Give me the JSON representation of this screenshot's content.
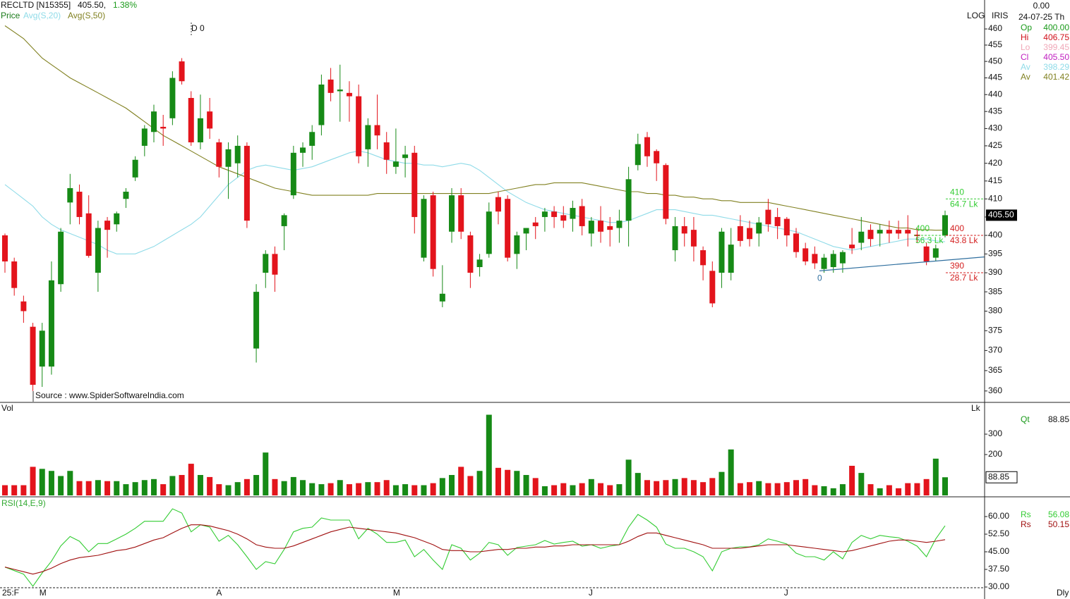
{
  "header": {
    "symbol": "RECLTD [N15355]",
    "last": "405.50,",
    "change": "1.38%",
    "top_value": "0.00",
    "date": "24-07-25 Th",
    "period": "Dly"
  },
  "chart_data": [
    {
      "type": "candlestick",
      "title": "Price",
      "scale_label": "LOG",
      "study_label": "IRIS",
      "log_scale": true,
      "ylim": [
        357.4,
        469.1
      ],
      "yticks": [
        360,
        365,
        370,
        375,
        380,
        385,
        390,
        395,
        400,
        405,
        410,
        415,
        420,
        425,
        430,
        435,
        440,
        445,
        450,
        455,
        460
      ],
      "up_color": "#168a16",
      "down_color": "#e3141c",
      "categories": [
        "25:F",
        null,
        null,
        null,
        "M",
        null,
        null,
        null,
        null,
        null,
        null,
        null,
        null,
        null,
        null,
        null,
        null,
        null,
        null,
        null,
        null,
        null,
        null,
        "A",
        null,
        null,
        null,
        null,
        null,
        null,
        null,
        null,
        null,
        null,
        null,
        null,
        null,
        null,
        null,
        null,
        null,
        null,
        "M",
        null,
        null,
        null,
        null,
        null,
        null,
        null,
        null,
        null,
        null,
        null,
        null,
        null,
        null,
        null,
        null,
        null,
        null,
        null,
        null,
        "J",
        null,
        null,
        null,
        null,
        null,
        null,
        null,
        null,
        null,
        null,
        null,
        null,
        null,
        null,
        null,
        null,
        null,
        null,
        null,
        null,
        "J",
        null,
        null,
        null,
        null,
        null,
        null,
        null,
        null,
        null,
        null,
        null,
        null,
        null,
        null,
        null,
        null,
        null
      ],
      "open": [
        400,
        393,
        382.5,
        376,
        366,
        366,
        387,
        409,
        412,
        406,
        390,
        404,
        403,
        410,
        416,
        425,
        429,
        430.5,
        433,
        450,
        439,
        426,
        435,
        426,
        419,
        420,
        425,
        370.5,
        390,
        395,
        402.5,
        411,
        423,
        425,
        431,
        444.5,
        441,
        440.5,
        439.5,
        424,
        431,
        426,
        419,
        421.5,
        423,
        394,
        411,
        382.5,
        401,
        411,
        400,
        391.5,
        395,
        410.5,
        410,
        395,
        400.5,
        403.5,
        405,
        406.5,
        405.5,
        404.5,
        408,
        400.5,
        404,
        402.5,
        402,
        404,
        419.5,
        427.5,
        423.5,
        419.5,
        396,
        402.5,
        401.5,
        396,
        390.5,
        390,
        390,
        402.5,
        402,
        400.5,
        407,
        405,
        404.5,
        400.5,
        396.5,
        395,
        391,
        391.5,
        392.5,
        397.5,
        398,
        401.5,
        400.5,
        401.5,
        401.5,
        401.5,
        400.2,
        397,
        394,
        400
      ],
      "high": [
        400.5,
        394,
        384,
        377,
        377,
        393,
        402,
        417,
        414,
        411,
        404,
        405,
        406.5,
        413,
        422,
        431,
        437,
        434,
        447,
        451,
        441,
        440,
        439,
        427,
        426,
        428,
        426,
        387,
        396,
        397,
        406,
        425,
        426,
        431,
        446,
        448,
        449,
        444,
        443,
        433,
        440,
        429,
        430,
        425,
        425,
        411,
        412,
        392,
        413,
        413,
        401,
        395,
        409,
        412,
        411,
        401,
        402,
        405,
        407.5,
        408,
        408,
        409.5,
        410,
        405,
        408,
        405,
        407,
        419,
        428.5,
        429,
        424,
        420,
        405,
        405,
        405,
        397,
        393,
        402,
        402,
        405.5,
        404,
        405,
        410,
        407.5,
        405,
        402,
        398,
        397,
        395,
        396,
        396,
        402,
        405,
        403,
        403,
        404,
        404,
        405.5,
        402,
        398,
        397.5,
        406.75
      ],
      "low": [
        390,
        384,
        377,
        360,
        361,
        364,
        385,
        403,
        403,
        394,
        385,
        394,
        401,
        407.5,
        415,
        422,
        426,
        425,
        431,
        443,
        425,
        424,
        427,
        416,
        410,
        416,
        402,
        367,
        386,
        385,
        396,
        410,
        419,
        421,
        428,
        438,
        432,
        432,
        420,
        419,
        424,
        417,
        417,
        416,
        400.5,
        393,
        389,
        381,
        398,
        399,
        386,
        389,
        394,
        403,
        393,
        391,
        396,
        399,
        401,
        402,
        402,
        401,
        400,
        397,
        398,
        397,
        398,
        397,
        418,
        419,
        415,
        403,
        393,
        397,
        393,
        388,
        381,
        386,
        388,
        397,
        397,
        397,
        401,
        399,
        397,
        394,
        392,
        391,
        390,
        390,
        390,
        395,
        396,
        397,
        397,
        398,
        399,
        397,
        398,
        392,
        393,
        399.45
      ],
      "close": [
        393,
        386,
        380,
        361.5,
        375,
        388,
        401,
        413,
        405,
        394.5,
        402,
        401.5,
        406,
        412,
        421,
        430,
        435,
        430,
        445,
        444,
        426,
        433,
        430,
        419,
        424,
        425,
        404,
        385,
        395,
        389.5,
        405.5,
        423,
        424.5,
        429,
        443,
        440.5,
        441.5,
        439.5,
        422,
        431,
        428,
        421,
        420.5,
        422.5,
        405,
        410,
        391,
        384.5,
        411,
        401,
        390,
        393.5,
        406.5,
        406.5,
        394,
        400,
        402,
        402.5,
        406.5,
        405,
        404,
        407.5,
        402.5,
        404,
        401,
        401.5,
        404,
        415.5,
        425.5,
        422,
        420,
        404.5,
        402.5,
        400.5,
        397,
        392,
        382,
        401,
        397.5,
        398.5,
        399,
        403.5,
        403,
        402.5,
        400,
        395.5,
        393,
        392.5,
        394,
        395,
        395.5,
        396.5,
        401,
        399,
        401.5,
        400.5,
        400.5,
        400.5,
        399.8,
        393,
        396.5,
        405.5
      ],
      "ohlc_labels": [
        {
          "name": "Op",
          "text": "400.00",
          "color": "#1a9a1a"
        },
        {
          "name": "Hi",
          "text": "406.75",
          "color": "#d0101a"
        },
        {
          "name": "Lo",
          "text": "399.45",
          "color": "#f0a8b8"
        },
        {
          "name": "Cl",
          "text": "405.50",
          "color": "#c020c0"
        }
      ],
      "series": [
        {
          "name": "Avg(S,20)",
          "short_name": "Av",
          "color": "#8fdbe8",
          "values": [
            414,
            412,
            410,
            408,
            405,
            403,
            401.5,
            400.5,
            399.5,
            398.5,
            397.5,
            396,
            395,
            395,
            395,
            396,
            397,
            398.5,
            400,
            401.5,
            403,
            405,
            408,
            411,
            414,
            416,
            418,
            419,
            419.5,
            419,
            418.5,
            418,
            418.5,
            419,
            420,
            421,
            422,
            423,
            423.5,
            423,
            422,
            421,
            420.5,
            420,
            420,
            419.5,
            419.5,
            419,
            419.5,
            420,
            419.5,
            418,
            416,
            414,
            412,
            410.5,
            409,
            408,
            407,
            406.5,
            406,
            405.5,
            405,
            404.5,
            404,
            403.5,
            403.5,
            404,
            405,
            406,
            407,
            407,
            407,
            406.5,
            406,
            405.5,
            405.5,
            405,
            404.5,
            404,
            403.5,
            403,
            402.5,
            402,
            401.5,
            401,
            400,
            399,
            398,
            397,
            396.5,
            396,
            396.5,
            397,
            397.5,
            398,
            398.5,
            399,
            399,
            399,
            398.5,
            398.29
          ]
        },
        {
          "name": "Avg(S,50)",
          "short_name": "Av",
          "color": "#808020",
          "values": [
            461,
            459,
            457,
            454,
            451,
            449,
            447,
            445,
            443.5,
            442,
            440.5,
            439,
            437.5,
            436,
            434,
            432,
            430,
            428,
            426.5,
            425,
            423.5,
            422,
            420.5,
            419,
            418,
            417,
            416,
            415,
            414,
            413,
            412.5,
            412,
            411.5,
            411,
            411,
            411,
            411,
            411,
            411,
            411,
            411.5,
            411.5,
            411.5,
            411.5,
            411.5,
            411.5,
            411.5,
            411.5,
            411.5,
            411.5,
            411.5,
            411.5,
            411.5,
            412,
            412.5,
            413,
            413.5,
            414,
            414,
            414.5,
            414.5,
            414.5,
            414.5,
            414,
            413.5,
            413,
            412.5,
            412,
            412,
            411.5,
            411.5,
            411,
            411,
            410.5,
            410.5,
            410,
            410,
            409.5,
            409.5,
            409,
            409,
            409,
            409,
            408.5,
            408,
            407.5,
            407,
            406.5,
            406,
            405.5,
            405,
            404.5,
            404,
            403.5,
            403,
            402.5,
            402,
            402,
            401.5,
            401.5,
            401.4,
            401.42
          ]
        }
      ],
      "levels": [
        {
          "price": 410,
          "volume": "64.7 Lk",
          "color": "#33cc33",
          "side": "right"
        },
        {
          "price": 400,
          "volume": "56.3 Lk",
          "color": "#33cc33",
          "side": "left"
        },
        {
          "price": 400,
          "volume": "43.8 Lk",
          "color": "#d42020",
          "side": "right"
        },
        {
          "price": 390,
          "volume": "28.7 Lk",
          "color": "#d42020",
          "side": "right"
        }
      ],
      "trendline": [
        {
          "index": 87.5,
          "price": 390.5
        },
        {
          "index": 105.2,
          "price": 394.2
        }
      ],
      "trendline_label": "0",
      "trendline_color": "#2f6f9f",
      "marker_label": "D 0",
      "source": "Source : www.SpiderSoftwareIndia.com"
    },
    {
      "type": "bar",
      "title": "Vol",
      "unit": "Lk",
      "short_name": "Qt",
      "ylim": [
        0,
        452
      ],
      "yticks": [
        200,
        300
      ],
      "values": [
        50,
        50,
        50,
        140,
        130,
        120,
        95,
        120,
        70,
        70,
        75,
        70,
        70,
        55,
        65,
        75,
        80,
        55,
        95,
        100,
        155,
        100,
        90,
        55,
        50,
        65,
        80,
        100,
        210,
        80,
        70,
        90,
        75,
        60,
        55,
        60,
        75,
        55,
        60,
        65,
        65,
        75,
        50,
        55,
        50,
        50,
        60,
        85,
        100,
        140,
        95,
        120,
        395,
        135,
        125,
        120,
        100,
        85,
        45,
        50,
        60,
        50,
        60,
        80,
        60,
        50,
        55,
        175,
        110,
        75,
        70,
        75,
        80,
        85,
        75,
        65,
        85,
        115,
        225,
        60,
        65,
        70,
        60,
        60,
        65,
        75,
        80,
        50,
        45,
        35,
        55,
        145,
        110,
        55,
        35,
        50,
        35,
        60,
        60,
        80,
        180,
        88.85
      ]
    },
    {
      "type": "line",
      "title": "RSI(14,E,9)",
      "ylim": [
        29.4,
        68.1
      ],
      "yticks": [
        {
          "value": 30,
          "label": "30.00"
        },
        {
          "value": 37.5,
          "label": "37.50"
        },
        {
          "value": 45,
          "label": "45.00"
        },
        {
          "value": 52.5,
          "label": "52.50"
        },
        {
          "value": 60,
          "label": "60.00"
        }
      ],
      "series": [
        {
          "name": "Rs",
          "color": "#33cc33",
          "values": [
            38.5,
            37,
            35.5,
            30.3,
            36,
            41,
            47.5,
            51.5,
            49.5,
            45,
            48.5,
            48.5,
            50.5,
            52.5,
            55,
            58,
            58,
            58,
            63.3,
            61.5,
            53.5,
            56.5,
            55.5,
            49.5,
            52,
            48,
            42.9,
            37.5,
            40.8,
            39.9,
            46,
            53.5,
            55,
            55.5,
            59.4,
            58.5,
            58.5,
            58.5,
            50.5,
            55,
            52.5,
            49,
            49,
            50,
            42.9,
            46,
            41.5,
            37.5,
            48,
            46.5,
            41.5,
            44.4,
            49,
            48,
            43.5,
            46.8,
            47.4,
            48,
            49.8,
            48.3,
            49,
            49.5,
            47.4,
            48,
            46.5,
            47.4,
            48,
            55.5,
            60.9,
            58.5,
            55.5,
            48.3,
            46.5,
            46.5,
            45,
            42.9,
            36.9,
            45,
            46.5,
            47.1,
            47.1,
            48,
            50.5,
            49.5,
            48.3,
            44.4,
            42.9,
            42.9,
            41.5,
            45,
            42,
            49,
            52,
            50.5,
            52,
            51.4,
            51,
            49.5,
            47.4,
            42.9,
            50.5,
            56.08
          ]
        },
        {
          "name": "Rs",
          "color": "#a01010",
          "values": [
            38.5,
            37.5,
            36.5,
            35.5,
            36.5,
            38,
            40,
            41.5,
            42.5,
            43,
            43.5,
            44.5,
            45.5,
            46,
            47,
            48.5,
            50,
            51,
            53,
            55,
            56.5,
            56.5,
            56,
            55,
            54,
            52.5,
            50.5,
            48,
            47,
            46.5,
            46.5,
            47.5,
            49,
            50.5,
            52,
            53.5,
            54.5,
            55.5,
            55,
            54.5,
            54,
            53.5,
            53,
            52,
            51,
            49.5,
            48,
            46,
            45.5,
            45.5,
            45,
            45,
            45.5,
            46,
            46,
            46.5,
            46.5,
            47,
            47,
            47.5,
            47.5,
            48,
            48,
            48,
            48,
            48,
            48,
            49.5,
            51.5,
            53,
            53,
            52,
            51,
            50,
            49,
            48,
            46.5,
            46.5,
            46.5,
            46.5,
            47,
            47.5,
            48,
            48,
            48,
            47.5,
            47,
            46.5,
            46,
            45.5,
            45,
            45.5,
            46.5,
            47.5,
            48.5,
            49.5,
            50,
            50,
            49.5,
            49,
            49.5,
            50.15
          ]
        }
      ]
    }
  ]
}
